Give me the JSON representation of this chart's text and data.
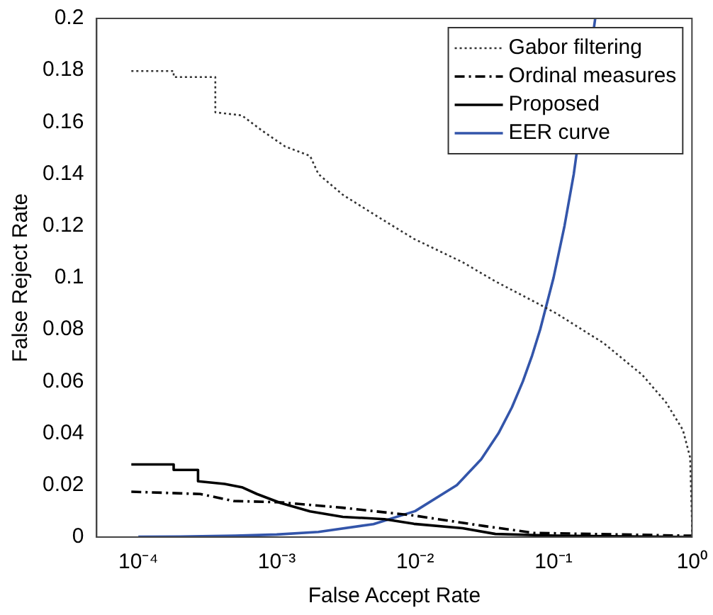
{
  "chart_data": {
    "type": "line",
    "xlabel": "False Accept Rate",
    "ylabel": "False Reject Rate",
    "log": "x",
    "xlim": [
      5e-05,
      1
    ],
    "xticks": [
      {
        "value": 0.0001,
        "label": "10⁻⁴"
      },
      {
        "value": 0.001,
        "label": "10⁻³"
      },
      {
        "value": 0.01,
        "label": "10⁻²"
      },
      {
        "value": 0.1,
        "label": "10⁻¹"
      },
      {
        "value": 1,
        "label": "10⁰"
      }
    ],
    "ylim": [
      0,
      0.2
    ],
    "yticks": [
      0,
      0.02,
      0.04,
      0.06,
      0.08,
      0.1,
      0.12,
      0.14,
      0.16,
      0.18,
      0.2
    ],
    "grid": false,
    "legend": "top right",
    "marker": "none",
    "series": [
      {
        "name": "Gabor filtering",
        "color": "#333333",
        "line_style": "dotted",
        "x": [
          8.9e-05,
          0.00018,
          0.00018,
          0.00036,
          0.00036,
          0.00056,
          0.00078,
          0.00115,
          0.00174,
          0.002,
          0.003,
          0.0052,
          0.0098,
          0.022,
          0.038,
          0.078,
          0.105,
          0.23,
          0.44,
          0.65,
          0.86,
          0.97,
          1,
          1
        ],
        "values": [
          0.1797,
          0.1797,
          0.1774,
          0.1774,
          0.1638,
          0.1626,
          0.1568,
          0.1506,
          0.147,
          0.14,
          0.132,
          0.124,
          0.115,
          0.106,
          0.0986,
          0.0899,
          0.0862,
          0.0748,
          0.0624,
          0.0519,
          0.0413,
          0.0307,
          0.006,
          0
        ]
      },
      {
        "name": "Ordinal measures",
        "color": "#000000",
        "line_style": "dashdot",
        "x": [
          8.9e-05,
          0.00028,
          0.00049,
          0.00107,
          0.003,
          0.0098,
          0.032,
          0.072,
          1
        ],
        "values": [
          0.0175,
          0.0166,
          0.0139,
          0.0134,
          0.0113,
          0.0083,
          0.0042,
          0.0016,
          0.0005
        ]
      },
      {
        "name": "Proposed",
        "color": "#000000",
        "line_style": "solid",
        "x": [
          8.9e-05,
          0.00018,
          0.00018,
          0.00027,
          0.00027,
          0.00042,
          0.00056,
          0.00072,
          0.00107,
          0.00174,
          0.003,
          0.006,
          0.0098,
          0.022,
          0.038,
          0.105,
          1
        ],
        "values": [
          0.028,
          0.028,
          0.0259,
          0.0259,
          0.0215,
          0.0205,
          0.0192,
          0.0166,
          0.0131,
          0.0099,
          0.0078,
          0.0069,
          0.0051,
          0.0034,
          0.0012,
          0.0005,
          0
        ]
      },
      {
        "name": "EER curve",
        "color": "#3355aa",
        "line_style": "solid",
        "x": [
          0.0001,
          0.0002,
          0.0005,
          0.001,
          0.002,
          0.005,
          0.01,
          0.02,
          0.03,
          0.04,
          0.05,
          0.06,
          0.07,
          0.08,
          0.1,
          0.12,
          0.14,
          0.16,
          0.18,
          0.2
        ],
        "values": [
          0.0001,
          0.0002,
          0.0005,
          0.001,
          0.002,
          0.005,
          0.01,
          0.02,
          0.03,
          0.04,
          0.05,
          0.06,
          0.07,
          0.08,
          0.1,
          0.12,
          0.14,
          null,
          null,
          0.2
        ]
      }
    ]
  }
}
